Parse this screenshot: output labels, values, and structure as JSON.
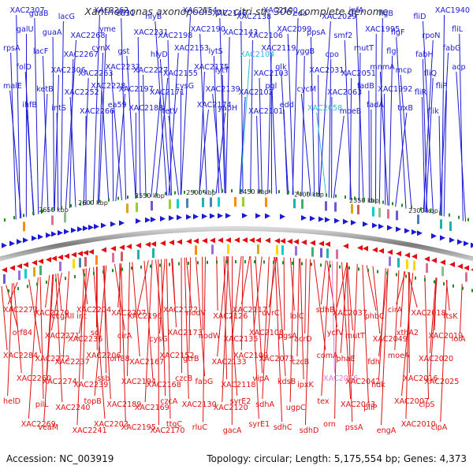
{
  "title": "Xanthomonas axonopodis pv. citri str. 306, complete genome",
  "footer": {
    "accession": "Accession: NC_003919",
    "summary": "Topology: circular; Length: 5,175,554 bp; Genes: 4,373"
  },
  "colors": {
    "top_strand": "#1a1ad6",
    "bottom_strand": "#e01010",
    "highlight_top": "#2fb9d8",
    "highlight_bottom": "#e27bd3",
    "axis": "#8c8c8c",
    "ticks": "#228b22"
  },
  "ticks": [
    "2650 kbp",
    "2600 kbp",
    "2550 kbp",
    "2500 kbp",
    "2450 kbp",
    "2400 kbp",
    "2350 kbp",
    "2300 kbp"
  ],
  "top_genes": [
    "XAC2307",
    "galU",
    "rpsA",
    "folD",
    "malE",
    "ihfB",
    "guaB",
    "guaA",
    "lacF",
    "XAC2306",
    "ketB",
    "intS",
    "lacG",
    "XAC2268",
    "XAC2267",
    "XAC2263",
    "XAC2252",
    "XAC2266",
    "XAC2262",
    "yme",
    "cynX",
    "XAC2233",
    "XAC2228",
    "ea59",
    "ea31",
    "XAC2231",
    "gst",
    "XAC2227",
    "XAC2197",
    "XAC2188",
    "hlyB",
    "XAC2198",
    "hlyD",
    "XAC2155",
    "XAC2171",
    "tetV",
    "XAC2154",
    "XAC2190",
    "XAC2153",
    "XAC2175",
    "cysG",
    "XAC2174",
    "XAC2146",
    "XAC2143",
    "lytS",
    "lytT",
    "XAC2139",
    "yapH",
    "XAC2138",
    "XAC2106",
    "XAC2104",
    "XAC2103",
    "XAC2102",
    "XAC2101",
    "XAC2100",
    "XAC2099",
    "XAC2119",
    "glk",
    "pgl",
    "edd",
    "eda",
    "ppsA",
    "yggB",
    "XAC2031",
    "cycM",
    "XAC2058",
    "XAC2029",
    "smf2",
    "cpo",
    "XAC2051",
    "XAC2063",
    "moeB",
    "infA",
    "XAC1995",
    "mutT",
    "mnmA",
    "fadB",
    "fadA",
    "flgB",
    "flgF",
    "flgI",
    "mcp",
    "XAC1992",
    "trxB",
    "fliD",
    "rpoN",
    "fabH",
    "fliQ",
    "fliR",
    "flik",
    "XAC1940",
    "fliL",
    "fabG",
    "acp",
    "fliP"
  ],
  "bottom_genes": [
    "XAC2273",
    "orf84",
    "XAC2284",
    "XAC2260",
    "helD",
    "XAC2269",
    "XAC2270",
    "XAC2271",
    "XAC2272",
    "XAC2274",
    "pilL",
    "veaM",
    "ccgAII int",
    "XAC2236",
    "XAC2237",
    "XAC2239",
    "XAC2240",
    "XAC2241",
    "XAC2204",
    "soj",
    "XAC2206",
    "ssb",
    "topB",
    "XAC2203",
    "XAC2207",
    "cirA",
    "orf88",
    "XAC2194",
    "XAC2189",
    "XAC2195",
    "XAC2196",
    "cysG",
    "XAC2167",
    "XAC2168",
    "XAC2169",
    "XAC2170",
    "XAC2172",
    "XAC2173",
    "XAC2152",
    "czcB",
    "czcA",
    "ttgC",
    "nodV",
    "nodW",
    "gtrB",
    "fabG",
    "XAC2130",
    "rluC",
    "XAC2126",
    "XAC2135",
    "XAC2133",
    "XAC2118",
    "XAC2120",
    "gacA",
    "XAC2117",
    "XAC2108",
    "XAC2109",
    "vipA",
    "syrE2",
    "syrE1",
    "uvrC",
    "pgsA",
    "XAC2073",
    "kdsB",
    "sdhA",
    "sdhC",
    "lolC",
    "acrD",
    "czcB",
    "ipxK",
    "ugpC",
    "sdhD",
    "sdhB",
    "ycfV",
    "comA",
    "XAC2056",
    "tex",
    "orn",
    "XAC2037",
    "mutT",
    "phaE",
    "XAC2042",
    "XAC2043",
    "pssA",
    "phbC",
    "XAC2049",
    "fdh",
    "ndk",
    "pilP",
    "engA",
    "cirA",
    "xthA2",
    "moeA",
    "XAC2016",
    "XAC2007",
    "XAC2010",
    "XAC2018",
    "XAC2019",
    "XAC2020",
    "XAC2025",
    "clpS",
    "clpA",
    "ftsK",
    "lolA"
  ]
}
